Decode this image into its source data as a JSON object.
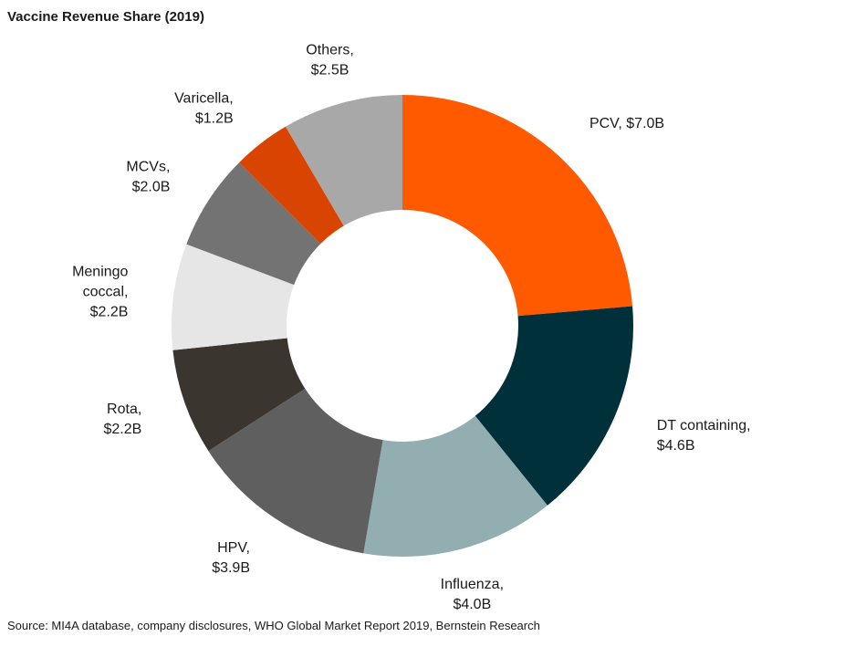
{
  "title": "Vaccine Revenue Share (2019)",
  "source": "Source: MI4A database,  company  disclosures, WHO Global Market Report 2019, Bernstein Research",
  "chart_data": {
    "type": "pie",
    "variant": "donut",
    "unit": "$B",
    "slices": [
      {
        "name": "PCV",
        "value": 7.0,
        "label_lines": [
          "PCV, $7.0B"
        ],
        "color": "#ff5a00"
      },
      {
        "name": "DT containing",
        "value": 4.6,
        "label_lines": [
          "DT containing,",
          "$4.6B"
        ],
        "color": "#00303a"
      },
      {
        "name": "Influenza",
        "value": 4.0,
        "label_lines": [
          "Influenza,",
          "$4.0B"
        ],
        "color": "#93aeb0"
      },
      {
        "name": "HPV",
        "value": 3.9,
        "label_lines": [
          "HPV,",
          "$3.9B"
        ],
        "color": "#5f5f5f"
      },
      {
        "name": "Rota",
        "value": 2.2,
        "label_lines": [
          "Rota,",
          "$2.2B"
        ],
        "color": "#3b3530"
      },
      {
        "name": "Meningococcal",
        "value": 2.2,
        "label_lines": [
          "Meningo",
          "coccal,",
          "$2.2B"
        ],
        "color": "#e6e6e6"
      },
      {
        "name": "MCVs",
        "value": 2.0,
        "label_lines": [
          "MCVs,",
          "$2.0B"
        ],
        "color": "#737373"
      },
      {
        "name": "Varicella",
        "value": 1.2,
        "label_lines": [
          "Varicella,",
          "$1.2B"
        ],
        "color": "#d94400"
      },
      {
        "name": "Others",
        "value": 2.5,
        "label_lines": [
          "Others,",
          "$2.5B"
        ],
        "color": "#a8a8a8"
      }
    ]
  }
}
